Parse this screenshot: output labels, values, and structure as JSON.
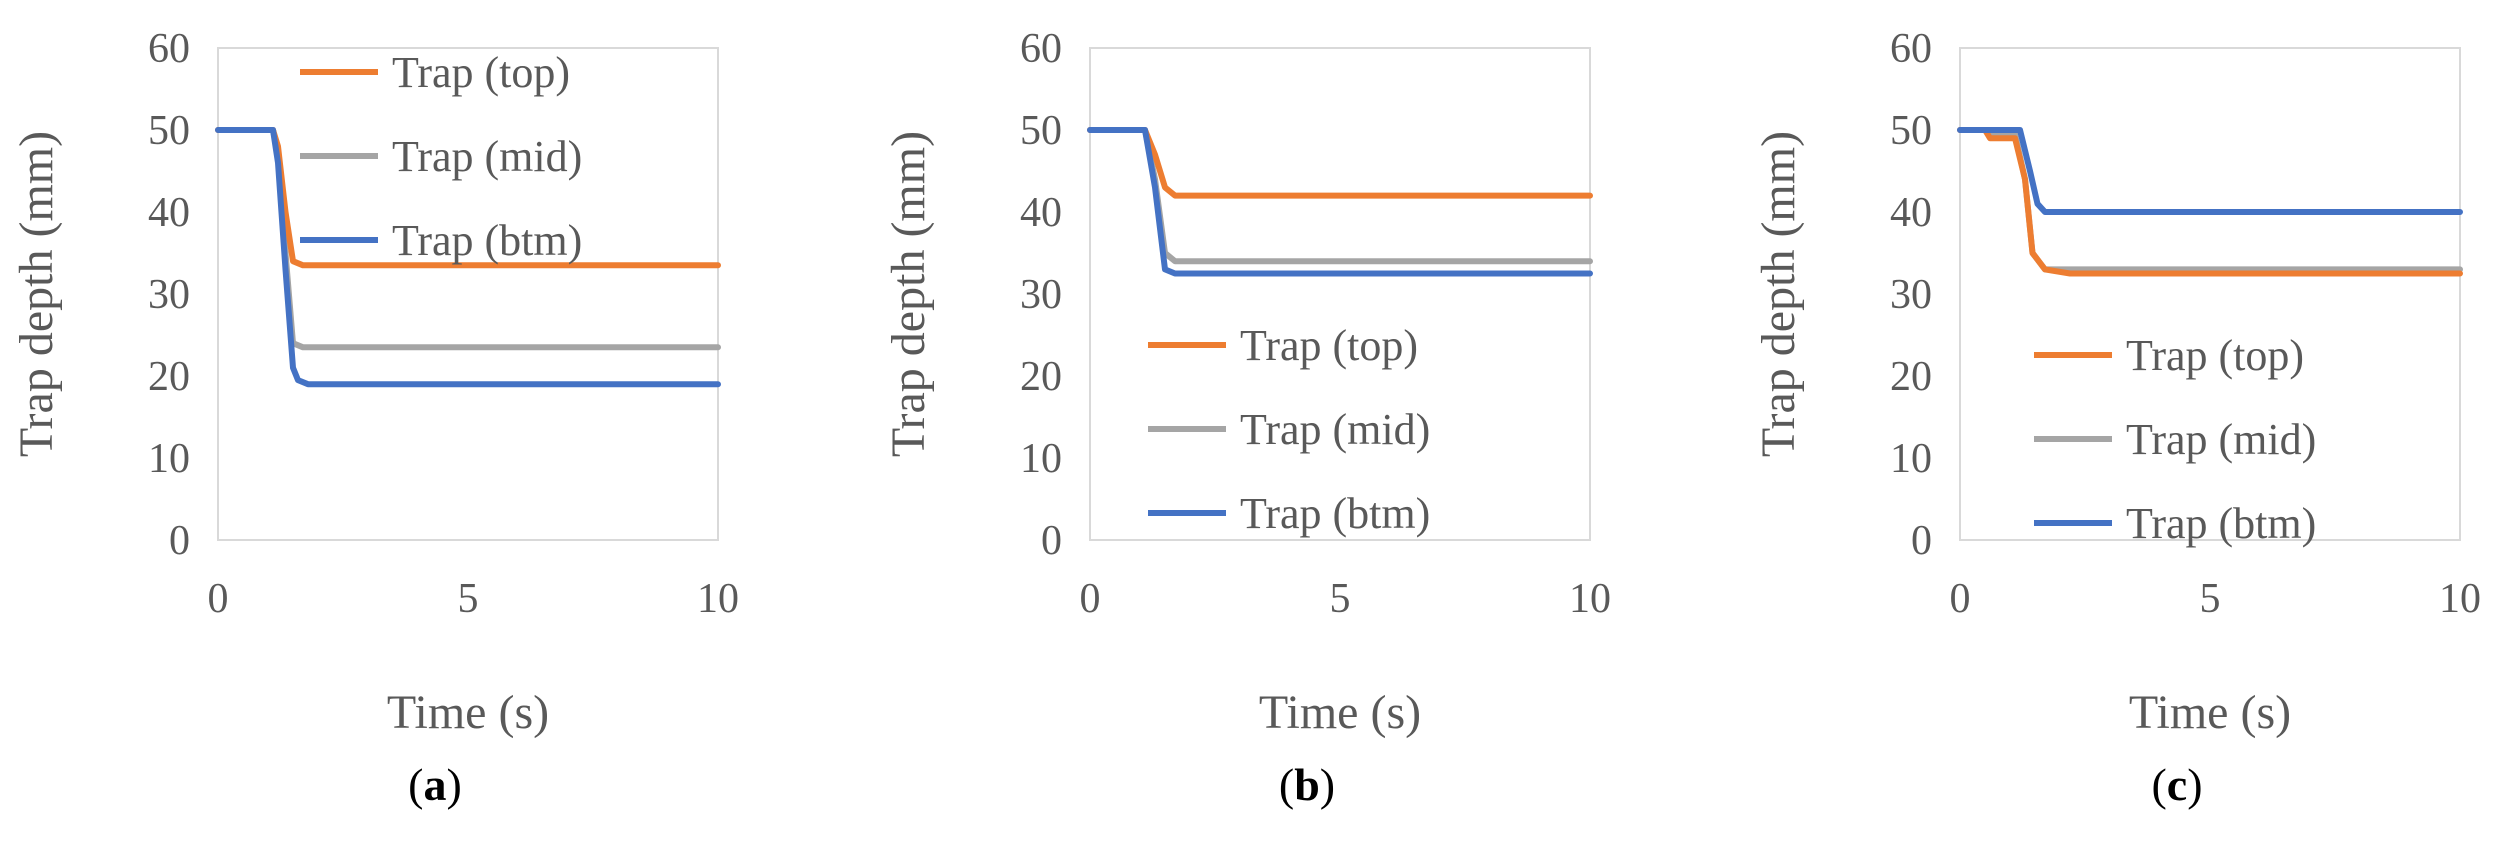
{
  "figure": {
    "colors": {
      "top": "#ED7D31",
      "mid": "#A5A5A5",
      "btm": "#4472C4",
      "plot_border": "#D9D9D9",
      "text": "#595959"
    }
  },
  "chart_data": [
    {
      "type": "line",
      "caption": "(a)",
      "xlabel": "Time (s)",
      "ylabel": "Trap depth (mm)",
      "xlim": [
        0,
        10
      ],
      "ylim": [
        0,
        60
      ],
      "xticks": [
        0,
        5,
        10
      ],
      "yticks": [
        0,
        10,
        20,
        30,
        40,
        50,
        60
      ],
      "grid": false,
      "legend_position": "top",
      "series": [
        {
          "name": "Trap (top)",
          "key": "top",
          "x": [
            0,
            1.1,
            1.2,
            1.35,
            1.5,
            1.7,
            10
          ],
          "y": [
            50,
            50,
            48,
            40,
            34,
            33.5,
            33.5
          ]
        },
        {
          "name": "Trap (mid)",
          "key": "mid",
          "x": [
            0,
            1.1,
            1.2,
            1.35,
            1.5,
            1.7,
            10
          ],
          "y": [
            50,
            50,
            47,
            35,
            24,
            23.5,
            23.5
          ]
        },
        {
          "name": "Trap (btm)",
          "key": "btm",
          "x": [
            0,
            1.1,
            1.2,
            1.35,
            1.5,
            1.6,
            1.8,
            10
          ],
          "y": [
            50,
            50,
            46,
            33,
            21,
            19.5,
            19,
            19
          ]
        }
      ]
    },
    {
      "type": "line",
      "caption": "(b)",
      "xlabel": "Time (s)",
      "ylabel": "Trap depth (mm)",
      "xlim": [
        0,
        10
      ],
      "ylim": [
        0,
        60
      ],
      "xticks": [
        0,
        5,
        10
      ],
      "yticks": [
        0,
        10,
        20,
        30,
        40,
        50,
        60
      ],
      "grid": false,
      "legend_position": "bottom",
      "series": [
        {
          "name": "Trap (top)",
          "key": "top",
          "x": [
            0,
            1.1,
            1.3,
            1.5,
            1.7,
            10
          ],
          "y": [
            50,
            50,
            47,
            43,
            42,
            42
          ]
        },
        {
          "name": "Trap (mid)",
          "key": "mid",
          "x": [
            0,
            1.1,
            1.3,
            1.5,
            1.7,
            10
          ],
          "y": [
            50,
            50,
            44,
            35,
            34,
            34
          ]
        },
        {
          "name": "Trap (btm)",
          "key": "btm",
          "x": [
            0,
            1.1,
            1.3,
            1.5,
            1.7,
            10
          ],
          "y": [
            50,
            50,
            43,
            33,
            32.5,
            32.5
          ]
        }
      ]
    },
    {
      "type": "line",
      "caption": "(c)",
      "xlabel": "Time (s)",
      "ylabel": "Trap depth (mm)",
      "xlim": [
        0,
        10
      ],
      "ylim": [
        0,
        60
      ],
      "xticks": [
        0,
        5,
        10
      ],
      "yticks": [
        0,
        10,
        20,
        30,
        40,
        50,
        60
      ],
      "grid": false,
      "legend_position": "bottom",
      "series": [
        {
          "name": "Trap (top)",
          "key": "top",
          "x": [
            0,
            0.5,
            0.6,
            1.1,
            1.3,
            1.45,
            1.7,
            2.2,
            10
          ],
          "y": [
            50,
            50,
            49,
            49,
            44,
            35,
            33,
            32.5,
            32.5
          ]
        },
        {
          "name": "Trap (mid)",
          "key": "mid",
          "x": [
            0,
            0.5,
            0.6,
            1.1,
            1.3,
            1.45,
            1.7,
            2.2,
            10
          ],
          "y": [
            50,
            50,
            49.5,
            49.5,
            44,
            35,
            33,
            33,
            33
          ]
        },
        {
          "name": "Trap (btm)",
          "key": "btm",
          "x": [
            0,
            0.5,
            0.7,
            1.2,
            1.4,
            1.55,
            1.7,
            10
          ],
          "y": [
            50,
            50,
            50,
            50,
            45,
            41,
            40,
            40
          ]
        }
      ]
    }
  ]
}
